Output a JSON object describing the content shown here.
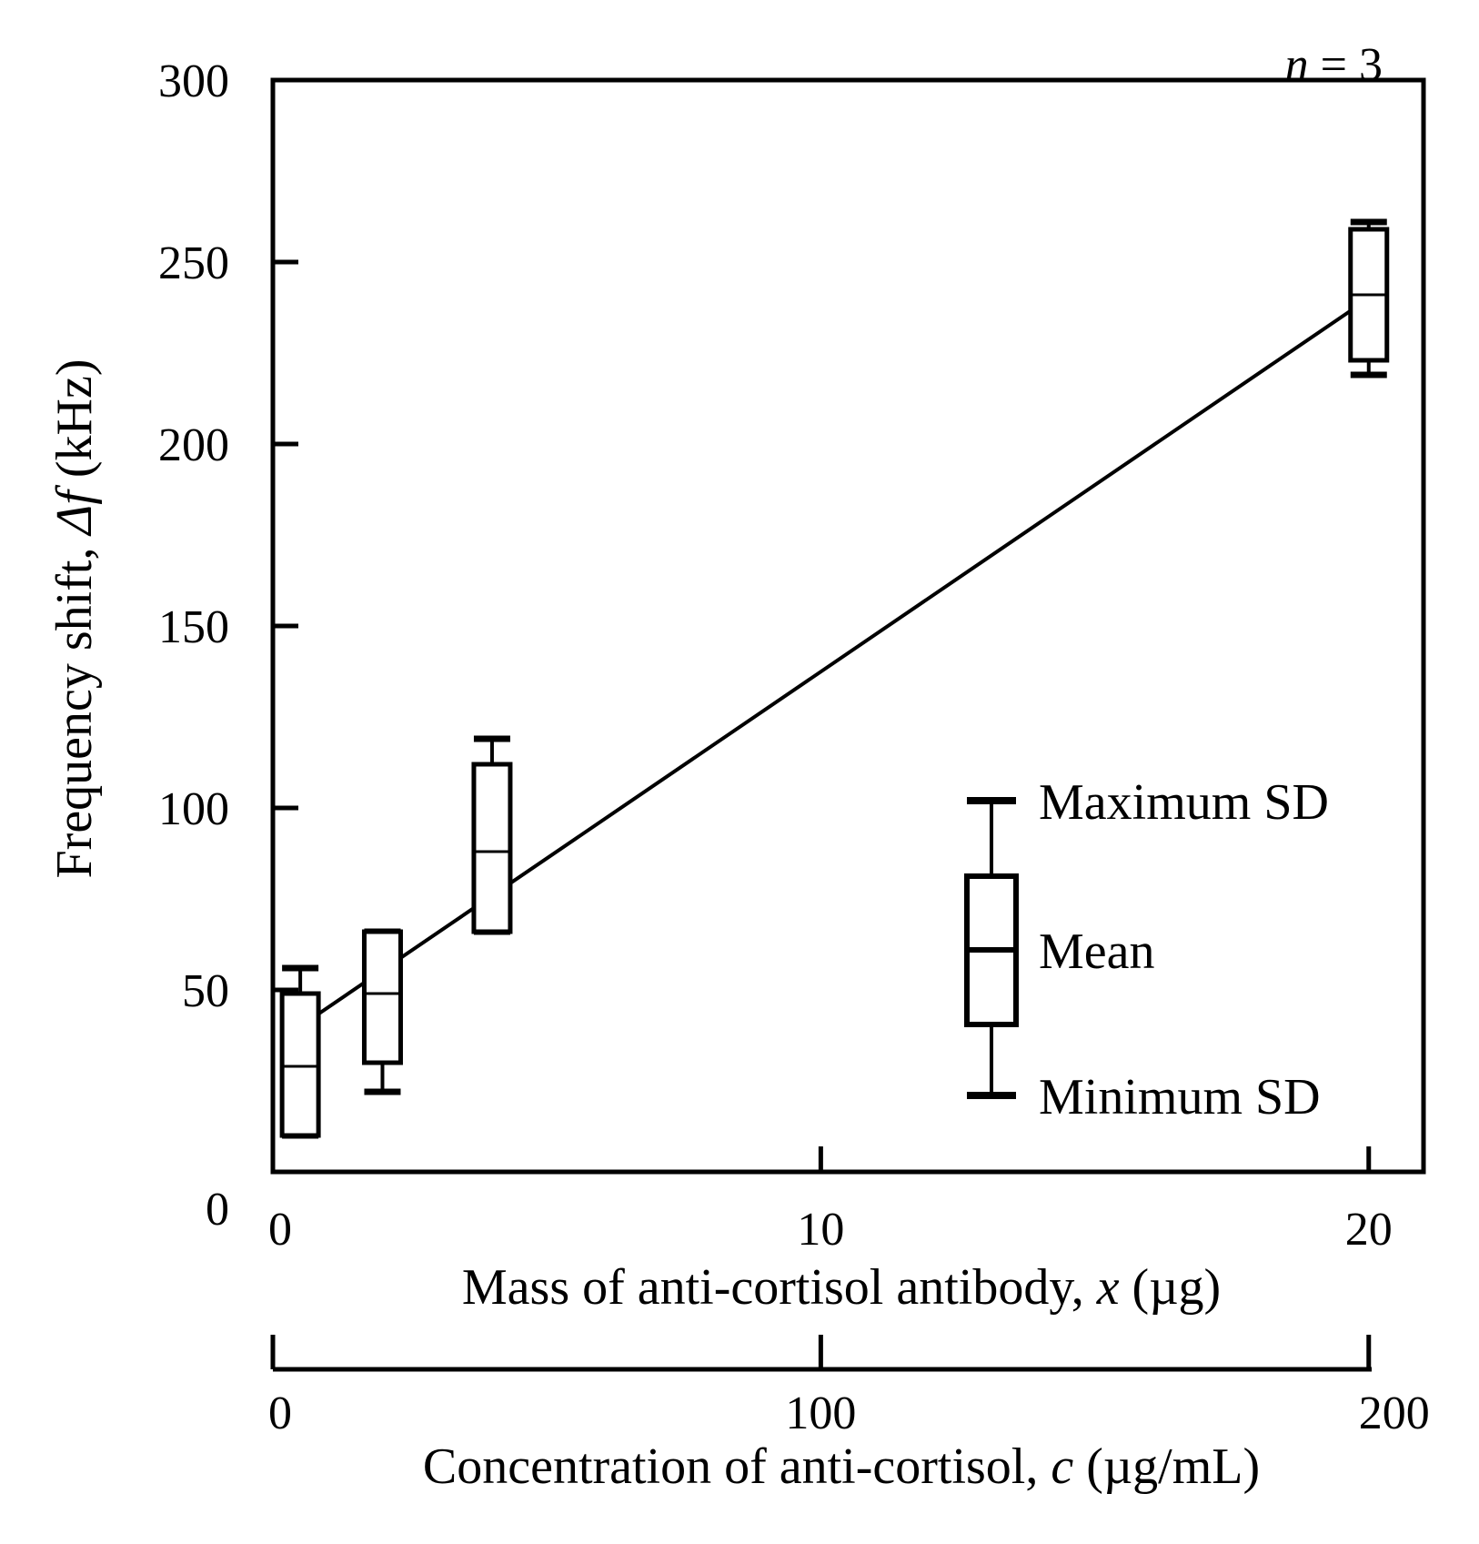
{
  "chart_data": {
    "type": "box",
    "annotation": {
      "italic": "n",
      "rest": " = 3"
    },
    "ylabel": {
      "prefix": "Frequency shift, ",
      "italic": "Δf",
      "suffix": " (kHz)"
    },
    "xlabel": {
      "prefix": "Mass of anti-cortisol antibody, ",
      "italic": "x",
      "suffix": " (µg)"
    },
    "x2label": {
      "prefix": "Concentration of anti-cortisol, ",
      "italic": "c",
      "suffix": " (µg/mL)"
    },
    "ylim": [
      0,
      300
    ],
    "xlim": [
      0,
      21
    ],
    "x2lim": [
      0,
      200
    ],
    "yticks": [
      0,
      50,
      100,
      150,
      200,
      250,
      300
    ],
    "xticks": [
      0,
      10,
      20
    ],
    "x2ticks": [
      0,
      100,
      200
    ],
    "boxes": [
      {
        "x": 0.5,
        "lower_sd": 10,
        "mean": 29,
        "upper_sd": 49,
        "min": 10,
        "max": 56
      },
      {
        "x": 2,
        "lower_sd": 30,
        "mean": 49,
        "upper_sd": 66,
        "min": 22,
        "max": 66
      },
      {
        "x": 4,
        "lower_sd": 66,
        "mean": 88,
        "upper_sd": 112,
        "min": 66,
        "max": 119
      },
      {
        "x": 20,
        "lower_sd": 223,
        "mean": 241,
        "upper_sd": 259,
        "min": 219,
        "max": 261
      }
    ],
    "fit_line": {
      "x": [
        0.5,
        20
      ],
      "y": [
        40,
        240
      ]
    },
    "legend": {
      "max_label": "Maximum SD",
      "mean_label": "Mean",
      "min_label": "Minimum SD"
    }
  }
}
